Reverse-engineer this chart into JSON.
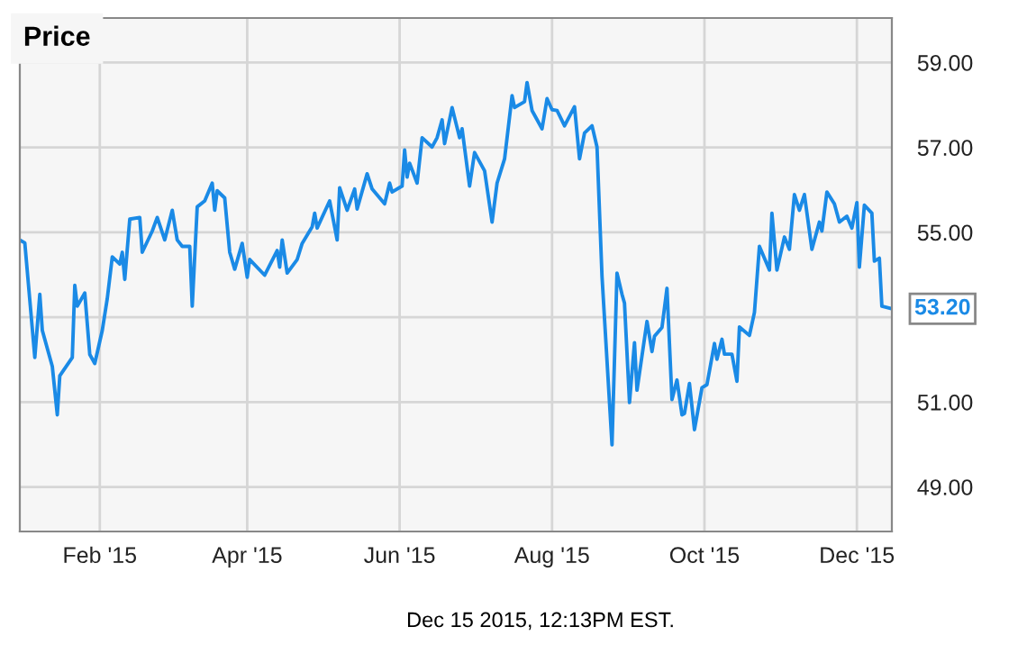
{
  "chart_data": {
    "type": "line",
    "title": "Price",
    "x": [
      "2014-12-31",
      "2015-01-02",
      "2015-01-06",
      "2015-01-08",
      "2015-01-09",
      "2015-01-13",
      "2015-01-15",
      "2015-01-16",
      "2015-01-21",
      "2015-01-22",
      "2015-01-23",
      "2015-01-26",
      "2015-01-28",
      "2015-01-30",
      "2015-02-02",
      "2015-02-04",
      "2015-02-06",
      "2015-02-09",
      "2015-02-10",
      "2015-02-11",
      "2015-02-13",
      "2015-02-17",
      "2015-02-18",
      "2015-02-22",
      "2015-02-24",
      "2015-02-27",
      "2015-03-02",
      "2015-03-04",
      "2015-03-06",
      "2015-03-09",
      "2015-03-10",
      "2015-03-12",
      "2015-03-15",
      "2015-03-18",
      "2015-03-19",
      "2015-03-20",
      "2015-03-23",
      "2015-03-25",
      "2015-03-27",
      "2015-03-30",
      "2015-04-01",
      "2015-04-02",
      "2015-04-08",
      "2015-04-13",
      "2015-04-14",
      "2015-04-15",
      "2015-04-17",
      "2015-04-21",
      "2015-04-23",
      "2015-04-27",
      "2015-04-28",
      "2015-04-29",
      "2015-05-04",
      "2015-05-07",
      "2015-05-08",
      "2015-05-11",
      "2015-05-14",
      "2015-05-15",
      "2015-05-19",
      "2015-05-21",
      "2015-05-26",
      "2015-05-28",
      "2015-05-29",
      "2015-06-02",
      "2015-06-03",
      "2015-06-04",
      "2015-06-05",
      "2015-06-08",
      "2015-06-10",
      "2015-06-14",
      "2015-06-16",
      "2015-06-18",
      "2015-06-19",
      "2015-06-22",
      "2015-06-25",
      "2015-06-26",
      "2015-06-29",
      "2015-07-01",
      "2015-07-05",
      "2015-07-08",
      "2015-07-10",
      "2015-07-13",
      "2015-07-16",
      "2015-07-17",
      "2015-07-21",
      "2015-07-22",
      "2015-07-24",
      "2015-07-28",
      "2015-07-30",
      "2015-08-01",
      "2015-08-03",
      "2015-08-06",
      "2015-08-10",
      "2015-08-12",
      "2015-08-14",
      "2015-08-17",
      "2015-08-19",
      "2015-08-21",
      "2015-08-25",
      "2015-08-27",
      "2015-08-29",
      "2015-08-30",
      "2015-09-01",
      "2015-09-03",
      "2015-09-04",
      "2015-09-08",
      "2015-09-10",
      "2015-09-11",
      "2015-09-14",
      "2015-09-16",
      "2015-09-18",
      "2015-09-20",
      "2015-09-22",
      "2015-09-23",
      "2015-09-25",
      "2015-09-27",
      "2015-09-30",
      "2015-10-02",
      "2015-10-05",
      "2015-10-06",
      "2015-10-08",
      "2015-10-09",
      "2015-10-12",
      "2015-10-14",
      "2015-10-15",
      "2015-10-19",
      "2015-10-21",
      "2015-10-23",
      "2015-10-27",
      "2015-10-28",
      "2015-10-30",
      "2015-11-02",
      "2015-11-04",
      "2015-11-06",
      "2015-11-08",
      "2015-11-10",
      "2015-11-13",
      "2015-11-16",
      "2015-11-17",
      "2015-11-19",
      "2015-11-22",
      "2015-11-24",
      "2015-11-27",
      "2015-11-29",
      "2015-12-01",
      "2015-12-02",
      "2015-12-04",
      "2015-12-07",
      "2015-12-08",
      "2015-12-10",
      "2015-12-11",
      "2015-12-15"
    ],
    "series": [
      {
        "color": "#1a8ae6",
        "values": [
          54.82,
          54.75,
          52.05,
          53.54,
          52.69,
          51.84,
          50.7,
          51.62,
          52.05,
          53.75,
          53.26,
          53.57,
          52.12,
          51.91,
          52.69,
          53.44,
          54.42,
          54.25,
          54.53,
          53.89,
          55.31,
          55.35,
          54.53,
          55.03,
          55.35,
          54.82,
          55.52,
          54.82,
          54.67,
          54.67,
          53.26,
          55.6,
          55.74,
          56.16,
          55.52,
          55.98,
          55.81,
          54.53,
          54.13,
          54.74,
          53.94,
          54.36,
          53.99,
          54.57,
          54.18,
          54.82,
          54.04,
          54.36,
          54.74,
          55.13,
          55.45,
          55.1,
          55.74,
          54.82,
          56.05,
          55.52,
          56.02,
          55.55,
          56.38,
          56.02,
          55.67,
          56.16,
          55.95,
          56.09,
          56.94,
          56.3,
          56.63,
          56.16,
          57.23,
          57.01,
          57.23,
          57.65,
          57.09,
          57.94,
          57.23,
          57.44,
          56.09,
          56.88,
          56.45,
          55.24,
          56.16,
          56.73,
          58.22,
          57.94,
          58.08,
          58.53,
          57.87,
          57.44,
          58.15,
          57.89,
          57.87,
          57.51,
          57.96,
          56.73,
          57.34,
          57.51,
          57.01,
          53.96,
          49.99,
          54.04,
          53.54,
          53.33,
          50.99,
          52.4,
          51.28,
          52.9,
          52.19,
          52.55,
          52.76,
          53.68,
          51.06,
          51.52,
          50.7,
          50.73,
          51.44,
          50.35,
          51.34,
          51.41,
          52.38,
          52.01,
          52.48,
          52.13,
          52.13,
          51.49,
          52.77,
          52.57,
          53.11,
          54.67,
          54.11,
          55.45,
          54.11,
          54.89,
          54.6,
          55.89,
          55.52,
          55.89,
          54.6,
          55.24,
          55.03,
          55.95,
          55.67,
          55.24,
          55.38,
          55.1,
          55.7,
          54.18,
          55.64,
          55.45,
          54.32,
          54.39,
          53.26,
          53.2
        ]
      }
    ],
    "xlim": [
      "2014-12-31",
      "2015-12-15"
    ],
    "xticks": [
      {
        "value": "2015-02-01",
        "label": "Feb '15"
      },
      {
        "value": "2015-04-01",
        "label": "Apr '15"
      },
      {
        "value": "2015-06-01",
        "label": "Jun '15"
      },
      {
        "value": "2015-08-01",
        "label": "Aug '15"
      },
      {
        "value": "2015-10-01",
        "label": "Oct '15"
      },
      {
        "value": "2015-12-01",
        "label": "Dec '15"
      }
    ],
    "ylim": [
      47.95,
      60.05
    ],
    "yticks": [
      {
        "value": 49,
        "label": "49.00"
      },
      {
        "value": 51,
        "label": "51.00"
      },
      {
        "value": 53,
        "label": null
      },
      {
        "value": 55,
        "label": "55.00"
      },
      {
        "value": 57,
        "label": "57.00"
      },
      {
        "value": 59,
        "label": "59.00"
      }
    ],
    "grid": true,
    "annotations": [
      {
        "text": "53.20",
        "x": "2015-12-15",
        "y": 53.2
      },
      "Dec 15 2015, 12:13PM EST."
    ]
  }
}
